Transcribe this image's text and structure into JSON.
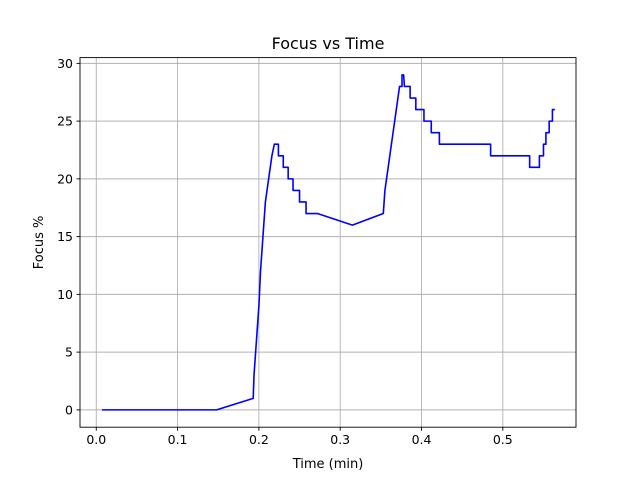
{
  "chart_data": {
    "type": "line",
    "title": "Focus vs Time",
    "xlabel": "Time (min)",
    "ylabel": "Focus %",
    "xlim": [
      -0.02,
      0.59
    ],
    "ylim": [
      -1.5,
      30.5
    ],
    "xticks": [
      0.0,
      0.1,
      0.2,
      0.3,
      0.4,
      0.5
    ],
    "xtick_labels": [
      "0.0",
      "0.1",
      "0.2",
      "0.3",
      "0.4",
      "0.5"
    ],
    "yticks": [
      0,
      5,
      10,
      15,
      20,
      25,
      30
    ],
    "ytick_labels": [
      "0",
      "5",
      "10",
      "15",
      "20",
      "25",
      "30"
    ],
    "grid": true,
    "colors": {
      "line": "#0000ff",
      "grid": "#b0b0b0"
    },
    "series": [
      {
        "points": [
          [
            0.007,
            0
          ],
          [
            0.148,
            0
          ],
          [
            0.193,
            1
          ],
          [
            0.194,
            3
          ],
          [
            0.196,
            5
          ],
          [
            0.198,
            7
          ],
          [
            0.2,
            9
          ],
          [
            0.202,
            12
          ],
          [
            0.204,
            14
          ],
          [
            0.206,
            16
          ],
          [
            0.208,
            18
          ],
          [
            0.21,
            19
          ],
          [
            0.212,
            20
          ],
          [
            0.214,
            21
          ],
          [
            0.216,
            22
          ],
          [
            0.219,
            23
          ],
          [
            0.224,
            23
          ],
          [
            0.224,
            22
          ],
          [
            0.23,
            22
          ],
          [
            0.23,
            21
          ],
          [
            0.236,
            21
          ],
          [
            0.236,
            20
          ],
          [
            0.242,
            20
          ],
          [
            0.242,
            19
          ],
          [
            0.25,
            19
          ],
          [
            0.25,
            18
          ],
          [
            0.258,
            18
          ],
          [
            0.258,
            17
          ],
          [
            0.272,
            17
          ],
          [
            0.315,
            16
          ],
          [
            0.353,
            17
          ],
          [
            0.355,
            19
          ],
          [
            0.357,
            20
          ],
          [
            0.359,
            21
          ],
          [
            0.361,
            22
          ],
          [
            0.363,
            23
          ],
          [
            0.365,
            24
          ],
          [
            0.367,
            25
          ],
          [
            0.369,
            26
          ],
          [
            0.371,
            27
          ],
          [
            0.373,
            28
          ],
          [
            0.376,
            28
          ],
          [
            0.376,
            29
          ],
          [
            0.378,
            29
          ],
          [
            0.379,
            28
          ],
          [
            0.386,
            28
          ],
          [
            0.386,
            27
          ],
          [
            0.393,
            27
          ],
          [
            0.393,
            26
          ],
          [
            0.403,
            26
          ],
          [
            0.403,
            25
          ],
          [
            0.412,
            25
          ],
          [
            0.412,
            24
          ],
          [
            0.422,
            24
          ],
          [
            0.422,
            23
          ],
          [
            0.485,
            23
          ],
          [
            0.485,
            22
          ],
          [
            0.533,
            22
          ],
          [
            0.533,
            21
          ],
          [
            0.545,
            21
          ],
          [
            0.545,
            22
          ],
          [
            0.55,
            22
          ],
          [
            0.55,
            23
          ],
          [
            0.553,
            23
          ],
          [
            0.553,
            24
          ],
          [
            0.557,
            24
          ],
          [
            0.557,
            25
          ],
          [
            0.561,
            25
          ],
          [
            0.561,
            26
          ],
          [
            0.564,
            26
          ]
        ]
      }
    ]
  }
}
